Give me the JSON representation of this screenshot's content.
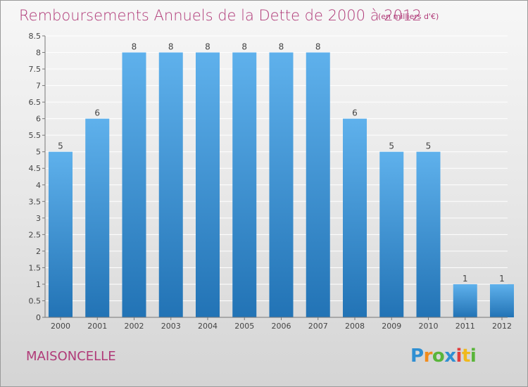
{
  "header": {
    "title": "Remboursements Annuels de la Dette de 2000 à 2012",
    "unit": "(en milliers d'€)"
  },
  "footer": {
    "commune": "MAISONCELLE",
    "logo": {
      "letters": [
        "P",
        "r",
        "o",
        "x",
        "i",
        "t",
        "i"
      ],
      "colors": [
        "#2f8fd2",
        "#f28c1c",
        "#59b53a",
        "#2f8fd2",
        "#e23c3c",
        "#f0b91c",
        "#59b53a"
      ]
    }
  },
  "chart_data": {
    "type": "bar",
    "title": "Remboursements Annuels de la Dette de 2000 à 2012",
    "unit": "(en milliers d'€)",
    "categories": [
      "2000",
      "2001",
      "2002",
      "2003",
      "2004",
      "2005",
      "2006",
      "2007",
      "2008",
      "2009",
      "2010",
      "2011",
      "2012"
    ],
    "values": [
      5,
      6,
      8,
      8,
      8,
      8,
      8,
      8,
      6,
      5,
      5,
      1,
      1
    ],
    "ylim": [
      0,
      8.5
    ],
    "yticks": [
      0,
      0.5,
      1,
      1.5,
      2,
      2.5,
      3,
      3.5,
      4,
      4.5,
      5,
      5.5,
      6,
      6.5,
      7,
      7.5,
      8,
      8.5
    ],
    "grid": true,
    "bar_color": "#3d8fd1"
  }
}
